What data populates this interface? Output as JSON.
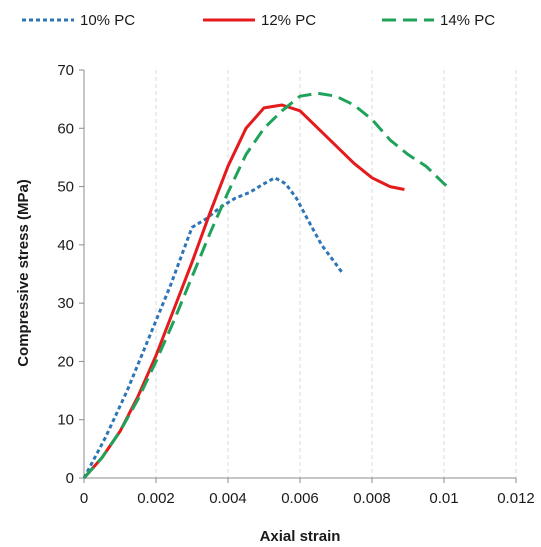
{
  "chart_data": {
    "type": "line",
    "title": "",
    "xlabel": "Axial strain",
    "ylabel": "Compressive stress (MPa)",
    "xlim": [
      0,
      0.012
    ],
    "ylim": [
      0,
      70
    ],
    "xticks": [
      0,
      0.002,
      0.004,
      0.006,
      0.008,
      0.01,
      0.012
    ],
    "xtick_labels": [
      "0",
      "0.002",
      "0.004",
      "0.006",
      "0.008",
      "0.01",
      "0.012"
    ],
    "yticks": [
      0,
      10,
      20,
      30,
      40,
      50,
      60,
      70
    ],
    "ytick_labels": [
      "0",
      "10",
      "20",
      "30",
      "40",
      "50",
      "60",
      "70"
    ],
    "grid": "vertical dashed",
    "legend_position": "top",
    "series": [
      {
        "name": "10% PC",
        "color": "#2e75b6",
        "dash": "dotted",
        "x": [
          0,
          0.0003,
          0.0006,
          0.0009,
          0.0012,
          0.0015,
          0.0018,
          0.0021,
          0.0024,
          0.0027,
          0.003,
          0.0034,
          0.0038,
          0.0042,
          0.0046,
          0.005,
          0.0053,
          0.0056,
          0.0059,
          0.0062,
          0.0066,
          0.0069,
          0.0072
        ],
        "y": [
          0,
          3.5,
          7,
          11,
          15,
          19.5,
          24,
          28.5,
          33,
          38,
          43,
          44.5,
          46.5,
          48,
          49,
          50.5,
          51.5,
          50.5,
          48,
          44.5,
          40,
          37.5,
          35
        ]
      },
      {
        "name": "12% PC",
        "color": "#e41a1c",
        "dash": "solid",
        "x": [
          0,
          0.0005,
          0.001,
          0.0015,
          0.002,
          0.0025,
          0.003,
          0.0035,
          0.004,
          0.0045,
          0.005,
          0.0055,
          0.006,
          0.0065,
          0.007,
          0.0075,
          0.008,
          0.0085,
          0.0089
        ],
        "y": [
          0,
          3.5,
          8,
          14,
          21,
          29,
          37,
          45.5,
          53.5,
          60,
          63.5,
          64,
          63,
          60,
          57,
          54,
          51.5,
          50,
          49.5
        ]
      },
      {
        "name": "14% PC",
        "color": "#1fa25a",
        "dash": "dashed",
        "x": [
          0,
          0.0005,
          0.001,
          0.0015,
          0.002,
          0.0025,
          0.003,
          0.0035,
          0.004,
          0.0045,
          0.005,
          0.0055,
          0.006,
          0.0065,
          0.007,
          0.0075,
          0.008,
          0.0085,
          0.009,
          0.0095,
          0.01,
          0.0102
        ],
        "y": [
          0,
          3.5,
          8,
          13.5,
          20,
          27,
          34.5,
          42,
          49,
          55.5,
          60,
          63,
          65.5,
          66,
          65.5,
          64,
          61.5,
          58,
          55.5,
          53.5,
          50.5,
          49.5
        ]
      }
    ]
  }
}
